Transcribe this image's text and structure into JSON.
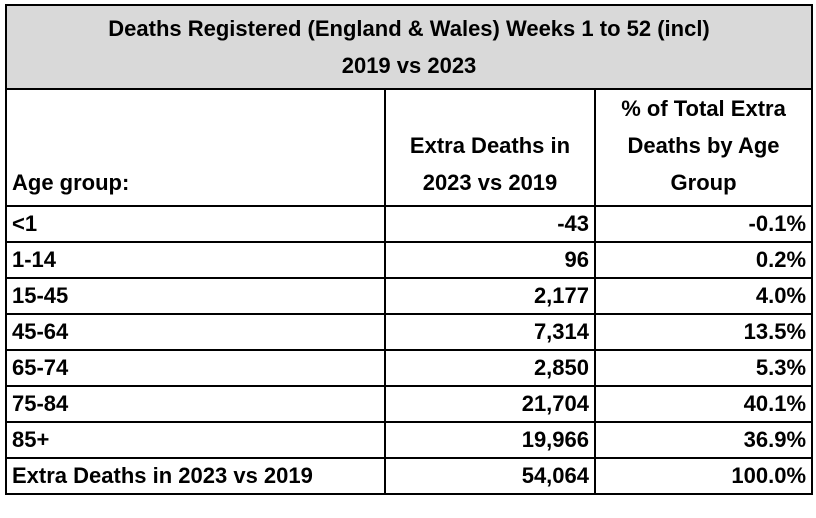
{
  "table": {
    "title_line1": "Deaths Registered (England & Wales) Weeks 1 to 52 (incl)",
    "title_line2": "2019 vs 2023",
    "headers": {
      "age_group": "Age group:",
      "extra_deaths": "Extra Deaths in 2023 vs 2019",
      "pct_total": "% of Total Extra Deaths by Age Group"
    },
    "rows": [
      {
        "age": "<1",
        "extra": "-43",
        "pct": "-0.1%"
      },
      {
        "age": "1-14",
        "extra": "96",
        "pct": "0.2%"
      },
      {
        "age": "15-45",
        "extra": "2,177",
        "pct": "4.0%"
      },
      {
        "age": "45-64",
        "extra": "7,314",
        "pct": "13.5%"
      },
      {
        "age": "65-74",
        "extra": "2,850",
        "pct": "5.3%"
      },
      {
        "age": "75-84",
        "extra": "21,704",
        "pct": "40.1%"
      },
      {
        "age": "85+",
        "extra": "19,966",
        "pct": "36.9%"
      },
      {
        "age": "Extra Deaths in 2023 vs 2019",
        "extra": "54,064",
        "pct": "100.0%"
      }
    ]
  },
  "colors": {
    "title_bg": "#d9d9d9",
    "border": "#000000",
    "text": "#000000"
  }
}
